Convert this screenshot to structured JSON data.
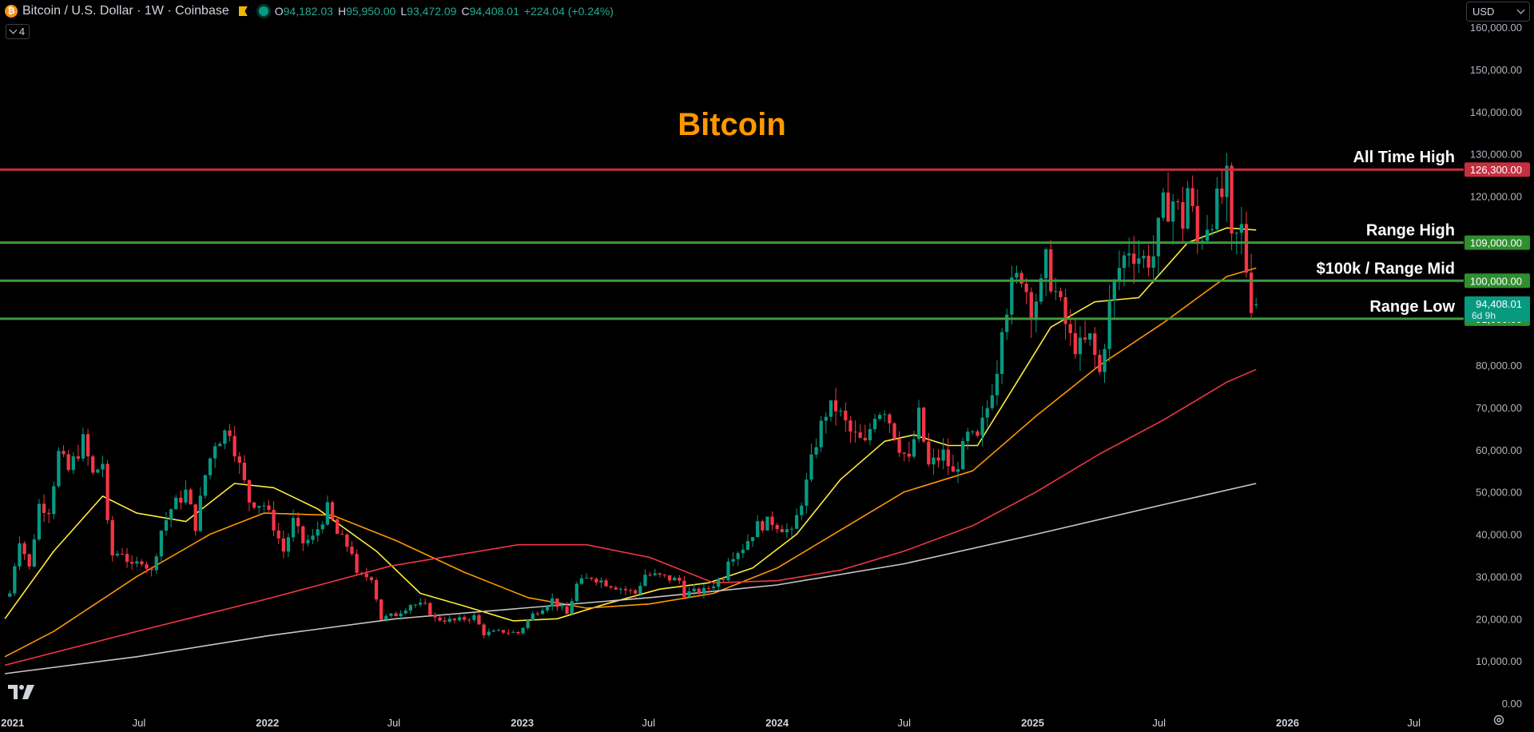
{
  "header": {
    "symbol_title": "Bitcoin / U.S. Dollar · 1W · Coinbase",
    "coin_logo_glyph": "₿",
    "open_label": "O",
    "open_value": "94,182.03",
    "high_label": "H",
    "high_value": "95,950.00",
    "low_label": "L",
    "low_value": "93,472.09",
    "close_label": "C",
    "close_value": "94,408.01",
    "change": "+224.04 (+0.24%)",
    "indicators_count": "4"
  },
  "currency": {
    "selected": "USD"
  },
  "colors": {
    "background": "#000000",
    "up_candle": "#089981",
    "down_candle": "#f23645",
    "title": "#ff9800",
    "ath_line": "#c62f3f",
    "range_line": "#3f9a3f",
    "ema20": "#ffeb3b",
    "ema50": "#ff9800",
    "ema100": "#f23645",
    "ema200": "#c8c8c8"
  },
  "icons": {
    "logo": "tradingview-logo-icon",
    "settings": "gear-icon",
    "flag": "flag-icon",
    "dropdown": "chevron-down-icon"
  },
  "chart_data": {
    "type": "candlestick",
    "title": "Bitcoin",
    "interval": "1W",
    "y_scale": "linear",
    "ylim": [
      0,
      160000
    ],
    "y_ticks": [
      0,
      10000,
      20000,
      30000,
      40000,
      50000,
      60000,
      70000,
      80000,
      90000,
      100000,
      110000,
      120000,
      130000,
      140000,
      150000,
      160000
    ],
    "y_tick_labels": [
      "0.00",
      "10,000.00",
      "20,000.00",
      "30,000.00",
      "40,000.00",
      "50,000.00",
      "60,000.00",
      "70,000.00",
      "80,000.00",
      "",
      "",
      "",
      "120,000.00",
      "130,000.00",
      "140,000.00",
      "150,000.00",
      "160,000.00"
    ],
    "x_range": [
      "2020-12-14",
      "2026-12-20"
    ],
    "x_ticks": [
      {
        "date": "2021-01-01",
        "label": "2021",
        "bold": true
      },
      {
        "date": "2021-07-01",
        "label": "Jul",
        "bold": false
      },
      {
        "date": "2022-01-01",
        "label": "2022",
        "bold": true
      },
      {
        "date": "2022-07-01",
        "label": "Jul",
        "bold": false
      },
      {
        "date": "2023-01-01",
        "label": "2023",
        "bold": true
      },
      {
        "date": "2023-07-01",
        "label": "Jul",
        "bold": false
      },
      {
        "date": "2024-01-01",
        "label": "2024",
        "bold": true
      },
      {
        "date": "2024-07-01",
        "label": "Jul",
        "bold": false
      },
      {
        "date": "2025-01-01",
        "label": "2025",
        "bold": true
      },
      {
        "date": "2025-07-01",
        "label": "Jul",
        "bold": false
      },
      {
        "date": "2026-01-01",
        "label": "2026",
        "bold": true
      },
      {
        "date": "2026-07-01",
        "label": "Jul",
        "bold": false
      }
    ],
    "grid": false,
    "price_path": [
      [
        "2020-12-28",
        26000
      ],
      [
        "2021-01-04",
        33000
      ],
      [
        "2021-01-11",
        39000
      ],
      [
        "2021-01-25",
        32000
      ],
      [
        "2021-02-08",
        47000
      ],
      [
        "2021-02-22",
        46000
      ],
      [
        "2021-03-08",
        59000
      ],
      [
        "2021-03-22",
        55000
      ],
      [
        "2021-04-12",
        62000
      ],
      [
        "2021-04-26",
        54000
      ],
      [
        "2021-05-10",
        57000
      ],
      [
        "2021-05-17",
        42000
      ],
      [
        "2021-05-24",
        35000
      ],
      [
        "2021-06-07",
        36000
      ],
      [
        "2021-06-21",
        32000
      ],
      [
        "2021-07-05",
        34000
      ],
      [
        "2021-07-19",
        31000
      ],
      [
        "2021-08-02",
        41000
      ],
      [
        "2021-08-16",
        46000
      ],
      [
        "2021-09-06",
        50000
      ],
      [
        "2021-09-20",
        42000
      ],
      [
        "2021-10-04",
        54000
      ],
      [
        "2021-10-18",
        62000
      ],
      [
        "2021-11-08",
        65000
      ],
      [
        "2021-11-22",
        56000
      ],
      [
        "2021-12-06",
        48000
      ],
      [
        "2021-12-27",
        47000
      ],
      [
        "2022-01-10",
        42000
      ],
      [
        "2022-01-24",
        36000
      ],
      [
        "2022-02-07",
        43000
      ],
      [
        "2022-02-21",
        38000
      ],
      [
        "2022-03-07",
        39000
      ],
      [
        "2022-03-28",
        46000
      ],
      [
        "2022-04-11",
        40000
      ],
      [
        "2022-05-02",
        36000
      ],
      [
        "2022-05-09",
        30000
      ],
      [
        "2022-05-30",
        30000
      ],
      [
        "2022-06-13",
        20000
      ],
      [
        "2022-07-04",
        21000
      ],
      [
        "2022-07-25",
        23500
      ],
      [
        "2022-08-15",
        23000
      ],
      [
        "2022-08-29",
        20000
      ],
      [
        "2022-09-26",
        19500
      ],
      [
        "2022-10-24",
        20500
      ],
      [
        "2022-11-07",
        16500
      ],
      [
        "2022-12-05",
        17000
      ],
      [
        "2022-12-26",
        16600
      ],
      [
        "2023-01-16",
        21000
      ],
      [
        "2023-02-13",
        24500
      ],
      [
        "2023-03-06",
        21000
      ],
      [
        "2023-03-20",
        28000
      ],
      [
        "2023-04-10",
        30000
      ],
      [
        "2023-05-01",
        28500
      ],
      [
        "2023-06-12",
        26000
      ],
      [
        "2023-06-26",
        30500
      ],
      [
        "2023-07-17",
        30000
      ],
      [
        "2023-08-14",
        29000
      ],
      [
        "2023-08-21",
        26000
      ],
      [
        "2023-09-18",
        26500
      ],
      [
        "2023-10-16",
        30000
      ],
      [
        "2023-10-23",
        34500
      ],
      [
        "2023-11-13",
        37000
      ],
      [
        "2023-12-04",
        42000
      ],
      [
        "2023-12-25",
        43000
      ],
      [
        "2024-01-15",
        41000
      ],
      [
        "2024-01-22",
        40000
      ],
      [
        "2024-02-12",
        52000
      ],
      [
        "2024-02-26",
        62000
      ],
      [
        "2024-03-11",
        69000
      ],
      [
        "2024-03-25",
        70000
      ],
      [
        "2024-04-15",
        64000
      ],
      [
        "2024-05-06",
        61000
      ],
      [
        "2024-05-20",
        69000
      ],
      [
        "2024-06-03",
        70000
      ],
      [
        "2024-06-24",
        61000
      ],
      [
        "2024-07-08",
        57000
      ],
      [
        "2024-07-22",
        68000
      ],
      [
        "2024-08-05",
        56000
      ],
      [
        "2024-08-26",
        59000
      ],
      [
        "2024-09-09",
        54000
      ],
      [
        "2024-09-30",
        63000
      ],
      [
        "2024-10-14",
        62000
      ],
      [
        "2024-10-28",
        70000
      ],
      [
        "2024-11-11",
        80000
      ],
      [
        "2024-11-18",
        91000
      ],
      [
        "2024-12-02",
        98000
      ],
      [
        "2024-12-16",
        102000
      ],
      [
        "2024-12-30",
        94000
      ],
      [
        "2025-01-13",
        98000
      ],
      [
        "2025-01-20",
        104000
      ],
      [
        "2025-02-03",
        97000
      ],
      [
        "2025-02-24",
        86000
      ],
      [
        "2025-03-10",
        84000
      ],
      [
        "2025-03-24",
        86000
      ],
      [
        "2025-04-07",
        78000
      ],
      [
        "2025-04-21",
        94000
      ],
      [
        "2025-05-05",
        103000
      ],
      [
        "2025-05-19",
        108000
      ],
      [
        "2025-06-09",
        105000
      ],
      [
        "2025-06-23",
        106000
      ],
      [
        "2025-07-07",
        117000
      ],
      [
        "2025-07-21",
        119000
      ],
      [
        "2025-08-04",
        114000
      ],
      [
        "2025-08-11",
        122000
      ],
      [
        "2025-08-25",
        109000
      ],
      [
        "2025-09-08",
        114000
      ],
      [
        "2025-09-29",
        120000
      ],
      [
        "2025-10-06",
        123000
      ],
      [
        "2025-10-13",
        108000
      ],
      [
        "2025-10-27",
        112000
      ],
      [
        "2025-11-03",
        103000
      ],
      [
        "2025-11-10",
        95000
      ],
      [
        "2025-11-17",
        94408
      ]
    ],
    "last_candle": {
      "open": 94182.03,
      "high": 95950.0,
      "low": 93472.09,
      "close": 94408.01
    },
    "moving_averages": [
      {
        "period_weeks": 20,
        "color": "#ffeb3b",
        "points": [
          [
            "2020-12-21",
            20000
          ],
          [
            "2021-03-01",
            36000
          ],
          [
            "2021-05-10",
            49000
          ],
          [
            "2021-06-28",
            45000
          ],
          [
            "2021-09-06",
            43000
          ],
          [
            "2021-11-15",
            52000
          ],
          [
            "2022-01-10",
            51000
          ],
          [
            "2022-03-14",
            46000
          ],
          [
            "2022-06-06",
            36000
          ],
          [
            "2022-08-08",
            26000
          ],
          [
            "2022-10-10",
            23000
          ],
          [
            "2022-12-19",
            19500
          ],
          [
            "2023-02-20",
            20000
          ],
          [
            "2023-05-01",
            23500
          ],
          [
            "2023-07-17",
            27000
          ],
          [
            "2023-09-25",
            28500
          ],
          [
            "2023-11-27",
            32000
          ],
          [
            "2024-01-29",
            40000
          ],
          [
            "2024-04-01",
            53000
          ],
          [
            "2024-06-03",
            62000
          ],
          [
            "2024-07-15",
            63500
          ],
          [
            "2024-09-02",
            61000
          ],
          [
            "2024-10-14",
            61000
          ],
          [
            "2024-12-02",
            74000
          ],
          [
            "2025-01-27",
            89000
          ],
          [
            "2025-03-31",
            95000
          ],
          [
            "2025-06-02",
            96000
          ],
          [
            "2025-08-11",
            109000
          ],
          [
            "2025-10-06",
            112500
          ],
          [
            "2025-11-17",
            112000
          ]
        ]
      },
      {
        "period_weeks": 50,
        "color": "#ff9800",
        "points": [
          [
            "2020-12-21",
            11000
          ],
          [
            "2021-03-01",
            17000
          ],
          [
            "2021-06-28",
            30000
          ],
          [
            "2021-10-11",
            40000
          ],
          [
            "2021-12-27",
            45000
          ],
          [
            "2022-04-04",
            44500
          ],
          [
            "2022-07-04",
            38500
          ],
          [
            "2022-10-10",
            31000
          ],
          [
            "2023-01-09",
            25000
          ],
          [
            "2023-04-03",
            22500
          ],
          [
            "2023-07-03",
            23500
          ],
          [
            "2023-10-02",
            26000
          ],
          [
            "2024-01-01",
            32000
          ],
          [
            "2024-04-01",
            41000
          ],
          [
            "2024-07-01",
            50000
          ],
          [
            "2024-10-07",
            55000
          ],
          [
            "2025-01-06",
            68000
          ],
          [
            "2025-04-07",
            80000
          ],
          [
            "2025-07-07",
            90000
          ],
          [
            "2025-10-06",
            101000
          ],
          [
            "2025-11-17",
            103000
          ]
        ]
      },
      {
        "period_weeks": 100,
        "color": "#f23645",
        "points": [
          [
            "2020-12-21",
            9000
          ],
          [
            "2021-06-28",
            17000
          ],
          [
            "2021-12-27",
            24500
          ],
          [
            "2022-06-27",
            32500
          ],
          [
            "2022-12-26",
            37500
          ],
          [
            "2023-04-03",
            37500
          ],
          [
            "2023-07-03",
            34500
          ],
          [
            "2023-10-02",
            28500
          ],
          [
            "2024-01-01",
            29000
          ],
          [
            "2024-04-01",
            31500
          ],
          [
            "2024-07-01",
            36000
          ],
          [
            "2024-10-07",
            42000
          ],
          [
            "2025-01-06",
            50000
          ],
          [
            "2025-04-07",
            59000
          ],
          [
            "2025-07-07",
            67000
          ],
          [
            "2025-10-06",
            76000
          ],
          [
            "2025-11-17",
            79000
          ]
        ]
      },
      {
        "period_weeks": 200,
        "color": "#c8c8c8",
        "points": [
          [
            "2020-12-21",
            7000
          ],
          [
            "2021-06-28",
            11000
          ],
          [
            "2022-01-03",
            16000
          ],
          [
            "2022-07-04",
            20000
          ],
          [
            "2023-01-02",
            22500
          ],
          [
            "2023-07-03",
            25000
          ],
          [
            "2024-01-01",
            28000
          ],
          [
            "2024-07-01",
            33000
          ],
          [
            "2025-01-06",
            40000
          ],
          [
            "2025-07-07",
            47000
          ],
          [
            "2025-11-17",
            52000
          ]
        ]
      }
    ],
    "horizontal_levels": [
      {
        "name": "All Time High",
        "price": 126300,
        "price_label": "126,300.00",
        "color": "#c62f3f",
        "label_bg": "#c62f3f"
      },
      {
        "name": "Range High",
        "price": 109000,
        "price_label": "109,000.00",
        "color": "#3f9a3f",
        "label_bg": "#2f8f2f"
      },
      {
        "name": "$100k / Range Mid",
        "price": 100000,
        "price_label": "100,000.00",
        "color": "#3f9a3f",
        "label_bg": "#2f8f2f"
      },
      {
        "name": "Range Low",
        "price": 91000,
        "price_label": "91,000.00",
        "color": "#3f9a3f",
        "label_bg": "#2f8f2f"
      }
    ],
    "current_price": {
      "price": 94408.01,
      "price_label": "94,408.01",
      "countdown": "6d 9h",
      "bg": "#089981"
    }
  }
}
